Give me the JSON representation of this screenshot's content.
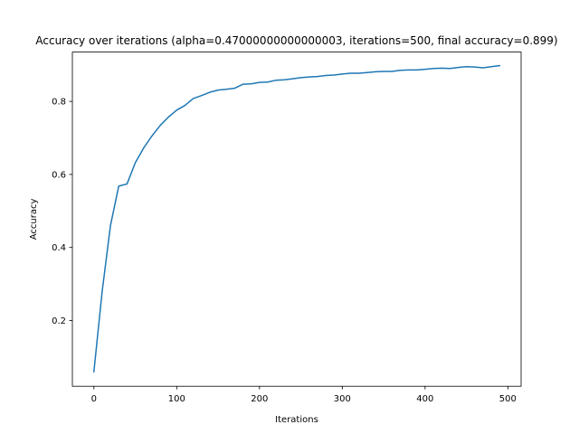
{
  "chart_data": {
    "type": "line",
    "title": "Accuracy over iterations (alpha=0.47000000000000003, iterations=500, final accuracy=0.899)",
    "xlabel": "Iterations",
    "ylabel": "Accuracy",
    "xlim": [
      -26,
      516
    ],
    "ylim": [
      0.02,
      0.935
    ],
    "xticks": [
      0,
      100,
      200,
      300,
      400,
      500
    ],
    "xtick_labels": [
      "0",
      "100",
      "200",
      "300",
      "400",
      "500"
    ],
    "yticks": [
      0.2,
      0.4,
      0.6,
      0.8
    ],
    "ytick_labels": [
      "0.2",
      "0.4",
      "0.6",
      "0.8"
    ],
    "grid": false,
    "series": [
      {
        "color": "#1f77b4",
        "x": [
          0,
          10,
          20,
          30,
          40,
          50,
          60,
          70,
          80,
          90,
          100,
          110,
          120,
          130,
          140,
          150,
          160,
          170,
          180,
          190,
          200,
          210,
          220,
          230,
          240,
          250,
          260,
          270,
          280,
          290,
          300,
          310,
          320,
          330,
          340,
          350,
          360,
          370,
          380,
          390,
          400,
          410,
          420,
          430,
          440,
          450,
          460,
          470,
          480,
          490
        ],
        "y": [
          0.06,
          0.28,
          0.46,
          0.568,
          0.574,
          0.632,
          0.672,
          0.705,
          0.734,
          0.757,
          0.776,
          0.789,
          0.808,
          0.816,
          0.825,
          0.831,
          0.833,
          0.836,
          0.847,
          0.848,
          0.852,
          0.853,
          0.858,
          0.859,
          0.862,
          0.865,
          0.867,
          0.868,
          0.871,
          0.872,
          0.875,
          0.877,
          0.877,
          0.879,
          0.881,
          0.882,
          0.882,
          0.885,
          0.886,
          0.886,
          0.888,
          0.89,
          0.891,
          0.89,
          0.893,
          0.895,
          0.894,
          0.892,
          0.895,
          0.898
        ]
      }
    ]
  }
}
